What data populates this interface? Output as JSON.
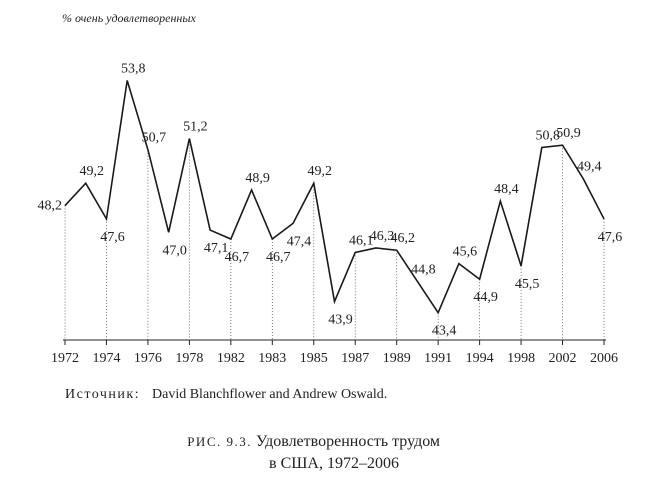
{
  "chart_data": {
    "type": "line",
    "ylabel": "% очень удовлетворенных",
    "categories": [
      "1972",
      null,
      "1974",
      null,
      "1976",
      null,
      "1978",
      null,
      "1982",
      null,
      "1983",
      null,
      "1985",
      null,
      "1987",
      null,
      "1989",
      null,
      "1991",
      null,
      "1994",
      null,
      "1998",
      null,
      "2002",
      null,
      "2006"
    ],
    "series": [
      {
        "color": "#1a1a1a",
        "values": [
          48.2,
          49.2,
          47.6,
          53.8,
          50.7,
          47.0,
          51.2,
          47.1,
          46.7,
          48.9,
          46.7,
          47.4,
          49.2,
          43.9,
          46.1,
          46.3,
          46.2,
          44.8,
          43.4,
          45.6,
          44.9,
          48.4,
          45.5,
          50.8,
          50.9,
          49.4,
          47.6
        ],
        "value_labels": [
          "48,2",
          "49,2",
          "47,6",
          "53,8",
          "50,7",
          "47,0",
          "51,2",
          "47,1",
          "46,7",
          "48,9",
          "46,7",
          "47,4",
          "49,2",
          "43,9",
          "46,1",
          "46,3",
          "46,2",
          "44,8",
          "43,4",
          "45,6",
          "44,9",
          "48,4",
          "45,5",
          "50,8",
          "50,9",
          "49,4",
          "47,6"
        ]
      }
    ],
    "ylim": [
      42,
      54
    ],
    "source_label": "Источник:",
    "source": "David Blanchflower and Andrew Oswald.",
    "caption_label": "РИС. 9.3.",
    "title_lines": [
      "Удовлетворенность трудом",
      "в США, 1972–2006"
    ]
  }
}
